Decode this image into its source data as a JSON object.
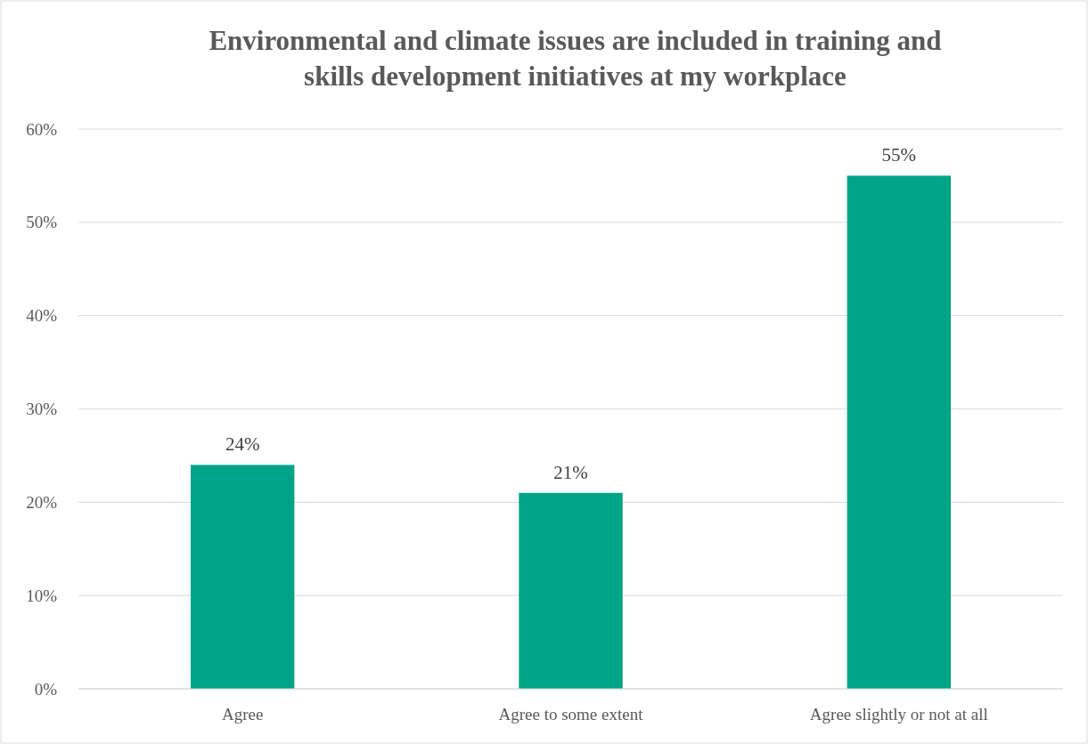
{
  "chart_data": {
    "type": "bar",
    "title": "Environmental and climate issues are included in training and skills development initiatives at my workplace",
    "categories": [
      "Agree",
      "Agree to some extent",
      "Agree slightly or not at all"
    ],
    "values": [
      24,
      21,
      55
    ],
    "value_labels": [
      "24%",
      "21%",
      "55%"
    ],
    "color": "#00a488",
    "ylim": [
      0,
      60
    ],
    "yticks": [
      {
        "value": 0,
        "label": "0%"
      },
      {
        "value": 10,
        "label": "10%"
      },
      {
        "value": 20,
        "label": "20%"
      },
      {
        "value": 30,
        "label": "30%"
      },
      {
        "value": 40,
        "label": "40%"
      },
      {
        "value": 50,
        "label": "50%"
      },
      {
        "value": 60,
        "label": "60%"
      }
    ],
    "grid": "y"
  }
}
